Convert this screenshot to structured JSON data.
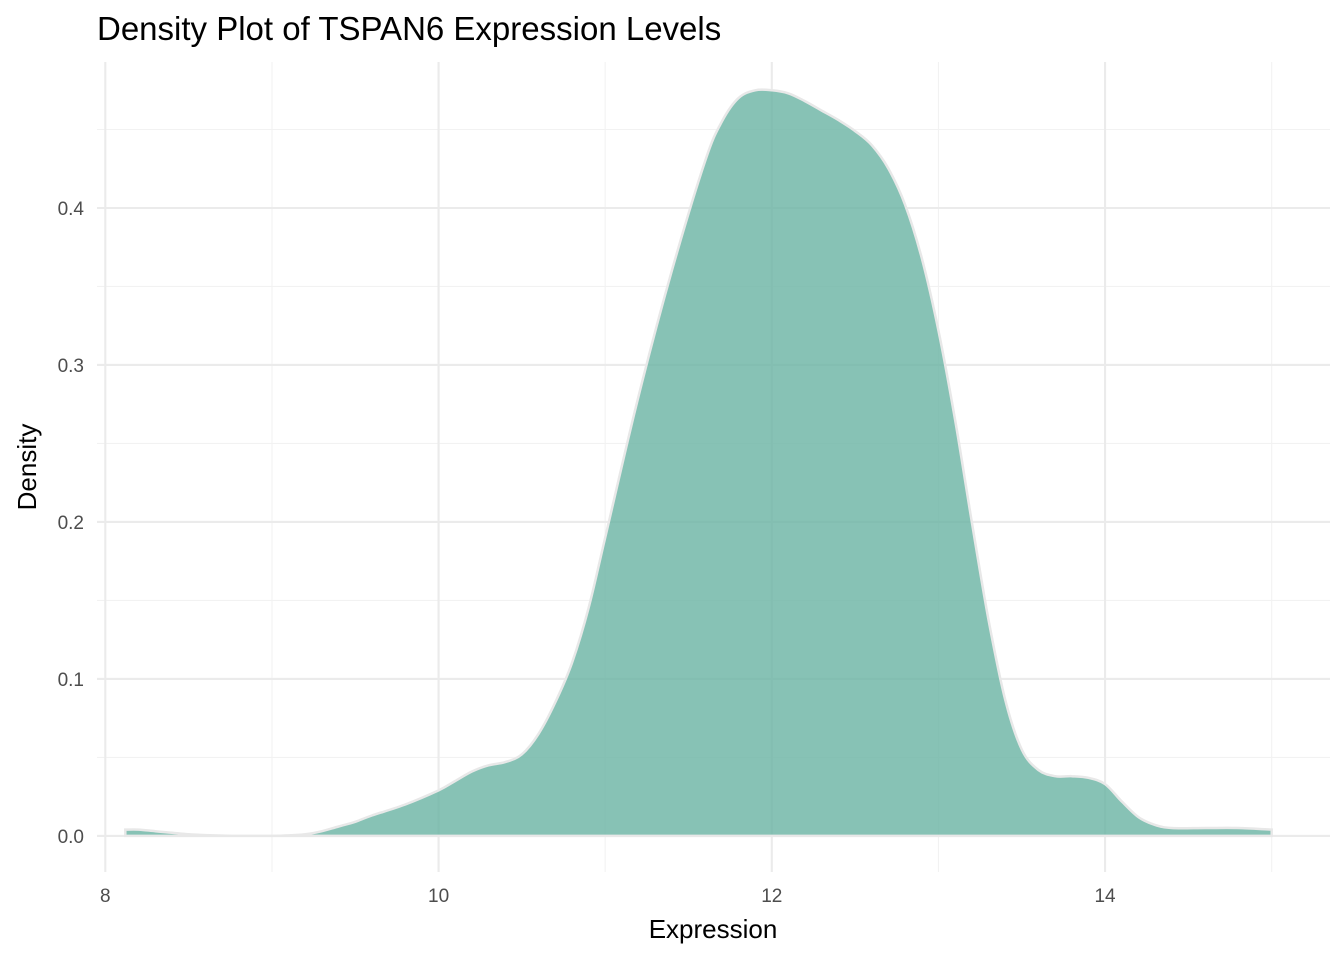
{
  "chart_data": {
    "type": "area",
    "title": "Density Plot of TSPAN6 Expression Levels",
    "xlabel": "Expression",
    "ylabel": "Density",
    "xlim": [
      7.95,
      15.35
    ],
    "ylim": [
      -0.023,
      0.493
    ],
    "x_ticks": [
      8,
      10,
      12,
      14
    ],
    "x_tick_labels": [
      "8",
      "10",
      "12",
      "14"
    ],
    "y_ticks": [
      0.0,
      0.1,
      0.2,
      0.3,
      0.4
    ],
    "y_tick_labels": [
      "0.0",
      "0.1",
      "0.2",
      "0.3",
      "0.4"
    ],
    "grid": true,
    "legend": "none",
    "fill_color": "#69b3a2",
    "outline_color": "#e8e8e8",
    "series": [
      {
        "x": [
          8.12,
          8.2,
          8.3,
          8.4,
          8.5,
          8.6,
          8.8,
          9.0,
          9.1,
          9.2,
          9.3,
          9.4,
          9.5,
          9.6,
          9.8,
          10.0,
          10.1,
          10.2,
          10.3,
          10.4,
          10.5,
          10.6,
          10.7,
          10.8,
          10.9,
          11.0,
          11.2,
          11.4,
          11.6,
          11.7,
          11.8,
          11.9,
          12.0,
          12.1,
          12.2,
          12.3,
          12.4,
          12.5,
          12.6,
          12.7,
          12.8,
          12.9,
          13.0,
          13.1,
          13.2,
          13.3,
          13.4,
          13.5,
          13.6,
          13.7,
          13.8,
          13.9,
          14.0,
          14.1,
          14.2,
          14.3,
          14.4,
          14.6,
          14.8,
          15.0
        ],
        "y": [
          0.004,
          0.004,
          0.003,
          0.002,
          0.001,
          0.0005,
          0.0,
          0.0,
          0.0003,
          0.001,
          0.003,
          0.006,
          0.009,
          0.013,
          0.02,
          0.029,
          0.035,
          0.041,
          0.045,
          0.047,
          0.052,
          0.065,
          0.085,
          0.11,
          0.145,
          0.19,
          0.28,
          0.36,
          0.43,
          0.455,
          0.47,
          0.475,
          0.475,
          0.473,
          0.468,
          0.462,
          0.456,
          0.449,
          0.44,
          0.425,
          0.402,
          0.368,
          0.322,
          0.265,
          0.2,
          0.138,
          0.087,
          0.055,
          0.042,
          0.038,
          0.038,
          0.037,
          0.033,
          0.022,
          0.012,
          0.007,
          0.005,
          0.005,
          0.005,
          0.004
        ]
      }
    ]
  }
}
